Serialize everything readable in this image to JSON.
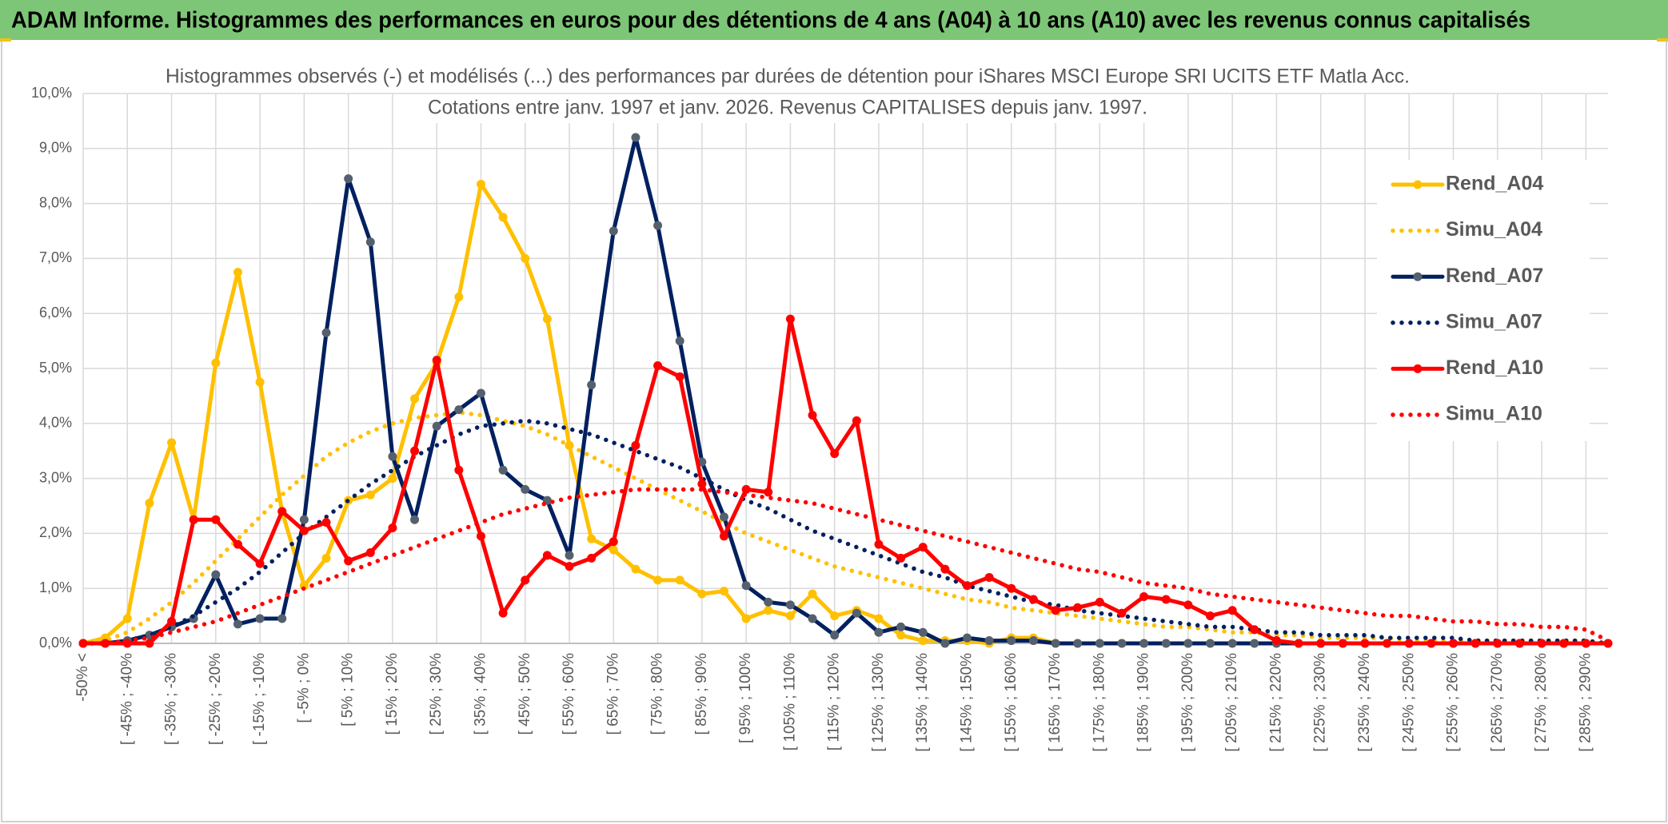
{
  "banner_title": "ADAM Informe. Histogrammes des performances en euros pour des détentions de 4 ans (A04) à 10 ans (A10) avec les revenus connus capitalisés",
  "chart_data": {
    "type": "line",
    "title": "Histogrammes observés (-) et modélisés (...) des performances par durées de détention pour iShares MSCI Europe SRI UCITS ETF Matla Acc.",
    "subtitle": "Cotations entre janv. 1997 et janv. 2026. Revenus CAPITALISES depuis janv. 1997.",
    "categories": [
      "-50% <",
      null,
      "[ -45% ; -40%",
      null,
      "[ -35% ; -30%",
      null,
      "[ -25% ; -20%",
      null,
      "[ -15% ; -10%",
      null,
      "[ -5% ; 0%",
      null,
      "[ 5% ; 10%",
      null,
      "[ 15% ; 20%",
      null,
      "[ 25% ; 30%",
      null,
      "[ 35% ; 40%",
      null,
      "[ 45% ; 50%",
      null,
      "[ 55% ; 60%",
      null,
      "[ 65% ; 70%",
      null,
      "[ 75% ; 80%",
      null,
      "[ 85% ; 90%",
      null,
      "[ 95% ; 100%",
      null,
      "[ 105% ; 110%",
      null,
      "[ 115% ; 120%",
      null,
      "[ 125% ; 130%",
      null,
      "[ 135% ; 140%",
      null,
      "[ 145% ; 150%",
      null,
      "[ 155% ; 160%",
      null,
      "[ 165% ; 170%",
      null,
      "[ 175% ; 180%",
      null,
      "[ 185% ; 190%",
      null,
      "[ 195% ; 200%",
      null,
      "[ 205% ; 210%",
      null,
      "[ 215% ; 220%",
      null,
      "[ 225% ; 230%",
      null,
      "[ 235% ; 240%",
      null,
      "[ 245% ; 250%",
      null,
      "[ 255% ; 260%",
      null,
      "[ 265% ; 270%",
      null,
      "[ 275% ; 280%",
      null,
      "[ 285% ; 290%",
      null
    ],
    "series": [
      {
        "name": "Rend_A04",
        "color": "#ffc000",
        "marker_color": "#ffc000",
        "style": "solid",
        "values": [
          0,
          0.1,
          0.45,
          2.55,
          3.65,
          2.25,
          5.1,
          6.75,
          4.75,
          2.4,
          1.05,
          1.55,
          2.6,
          2.7,
          3.0,
          4.45,
          5.1,
          6.3,
          8.35,
          7.75,
          7.0,
          5.9,
          3.6,
          1.9,
          1.7,
          1.35,
          1.15,
          1.15,
          0.9,
          0.95,
          0.45,
          0.6,
          0.5,
          0.9,
          0.5,
          0.6,
          0.45,
          0.15,
          0.05,
          0.05,
          0.05,
          0,
          0.1,
          0.1,
          0,
          0,
          0,
          0,
          0,
          0,
          0,
          0,
          0,
          0,
          0,
          0,
          0,
          0,
          0,
          0,
          0,
          0,
          0,
          0,
          0,
          0,
          0,
          0,
          0,
          0
        ]
      },
      {
        "name": "Simu_A04",
        "color": "#ffc000",
        "style": "dotted",
        "values": [
          0,
          0.05,
          0.2,
          0.45,
          0.75,
          1.1,
          1.5,
          1.9,
          2.3,
          2.7,
          3.05,
          3.4,
          3.65,
          3.85,
          4.0,
          4.1,
          4.15,
          4.2,
          4.15,
          4.05,
          3.95,
          3.8,
          3.6,
          3.4,
          3.2,
          3.0,
          2.8,
          2.6,
          2.4,
          2.2,
          2.0,
          1.85,
          1.7,
          1.55,
          1.4,
          1.3,
          1.2,
          1.1,
          1.0,
          0.9,
          0.8,
          0.75,
          0.65,
          0.6,
          0.55,
          0.5,
          0.45,
          0.4,
          0.35,
          0.3,
          0.3,
          0.25,
          0.2,
          0.2,
          0.15,
          0.15,
          0.1,
          0.1,
          0.1,
          0.1,
          0.05,
          0.05,
          0.05,
          0.05,
          0.05,
          0.05,
          0.05,
          0.05,
          0.05,
          0
        ]
      },
      {
        "name": "Rend_A07",
        "color": "#002060",
        "marker_color": "#55606e",
        "style": "solid",
        "values": [
          0,
          0,
          0.05,
          0.15,
          0.3,
          0.45,
          1.25,
          0.35,
          0.45,
          0.45,
          2.25,
          5.65,
          8.45,
          7.3,
          3.4,
          2.25,
          3.95,
          4.25,
          4.55,
          3.15,
          2.8,
          2.6,
          1.6,
          4.7,
          7.5,
          9.2,
          7.6,
          5.5,
          3.3,
          2.3,
          1.05,
          0.75,
          0.7,
          0.45,
          0.15,
          0.55,
          0.2,
          0.3,
          0.2,
          0,
          0.1,
          0.05,
          0.05,
          0.05,
          0,
          0,
          0,
          0,
          0,
          0,
          0,
          0,
          0,
          0,
          0,
          0,
          0,
          0,
          0,
          0,
          0,
          0,
          0,
          0,
          0,
          0,
          0,
          0,
          0,
          0
        ]
      },
      {
        "name": "Simu_A07",
        "color": "#002060",
        "style": "dotted",
        "values": [
          0,
          0,
          0.05,
          0.15,
          0.3,
          0.5,
          0.75,
          1.0,
          1.3,
          1.65,
          2.0,
          2.3,
          2.6,
          2.9,
          3.15,
          3.4,
          3.6,
          3.8,
          3.95,
          4.0,
          4.05,
          4.0,
          3.9,
          3.8,
          3.65,
          3.5,
          3.35,
          3.2,
          3.0,
          2.8,
          2.6,
          2.45,
          2.25,
          2.05,
          1.9,
          1.75,
          1.6,
          1.45,
          1.3,
          1.2,
          1.05,
          0.95,
          0.85,
          0.75,
          0.7,
          0.6,
          0.55,
          0.5,
          0.45,
          0.4,
          0.35,
          0.3,
          0.3,
          0.25,
          0.2,
          0.2,
          0.15,
          0.15,
          0.15,
          0.1,
          0.1,
          0.1,
          0.1,
          0.05,
          0.05,
          0.05,
          0.05,
          0.05,
          0.05,
          0
        ]
      },
      {
        "name": "Rend_A10",
        "color": "#ff0000",
        "marker_color": "#ff0000",
        "style": "solid",
        "values": [
          0,
          0,
          0,
          0,
          0.4,
          2.25,
          2.25,
          1.8,
          1.45,
          2.4,
          2.05,
          2.2,
          1.5,
          1.65,
          2.1,
          3.5,
          5.15,
          3.15,
          1.95,
          0.55,
          1.15,
          1.6,
          1.4,
          1.55,
          1.85,
          3.6,
          5.05,
          4.85,
          2.9,
          1.95,
          2.8,
          2.75,
          5.9,
          4.15,
          3.45,
          4.05,
          1.8,
          1.55,
          1.75,
          1.35,
          1.05,
          1.2,
          1.0,
          0.8,
          0.6,
          0.65,
          0.75,
          0.55,
          0.85,
          0.8,
          0.7,
          0.5,
          0.6,
          0.25,
          0.05,
          0,
          0,
          0,
          0,
          0,
          0,
          0,
          0,
          0,
          0,
          0,
          0,
          0,
          0,
          0
        ]
      },
      {
        "name": "Simu_A10",
        "color": "#ff0000",
        "style": "dotted",
        "values": [
          0,
          0,
          0.05,
          0.1,
          0.2,
          0.3,
          0.4,
          0.55,
          0.7,
          0.85,
          1.0,
          1.15,
          1.3,
          1.45,
          1.6,
          1.75,
          1.9,
          2.05,
          2.2,
          2.35,
          2.45,
          2.55,
          2.65,
          2.7,
          2.75,
          2.8,
          2.8,
          2.8,
          2.8,
          2.75,
          2.7,
          2.65,
          2.6,
          2.55,
          2.45,
          2.35,
          2.25,
          2.15,
          2.05,
          1.95,
          1.85,
          1.75,
          1.65,
          1.55,
          1.45,
          1.35,
          1.3,
          1.2,
          1.1,
          1.05,
          1.0,
          0.9,
          0.85,
          0.8,
          0.75,
          0.7,
          0.65,
          0.6,
          0.55,
          0.5,
          0.5,
          0.45,
          0.4,
          0.4,
          0.35,
          0.35,
          0.3,
          0.3,
          0.25,
          0.05
        ]
      }
    ],
    "ylim": [
      0,
      10
    ],
    "yticks": [
      {
        "value": 0,
        "label": "0,0%"
      },
      {
        "value": 1,
        "label": "1,0%"
      },
      {
        "value": 2,
        "label": "2,0%"
      },
      {
        "value": 3,
        "label": "3,0%"
      },
      {
        "value": 4,
        "label": "4,0%"
      },
      {
        "value": 5,
        "label": "5,0%"
      },
      {
        "value": 6,
        "label": "6,0%"
      },
      {
        "value": 7,
        "label": "7,0%"
      },
      {
        "value": 8,
        "label": "8,0%"
      },
      {
        "value": 9,
        "label": "9,0%"
      },
      {
        "value": 10,
        "label": "10,0%"
      }
    ],
    "grid": true,
    "legend": "right"
  }
}
